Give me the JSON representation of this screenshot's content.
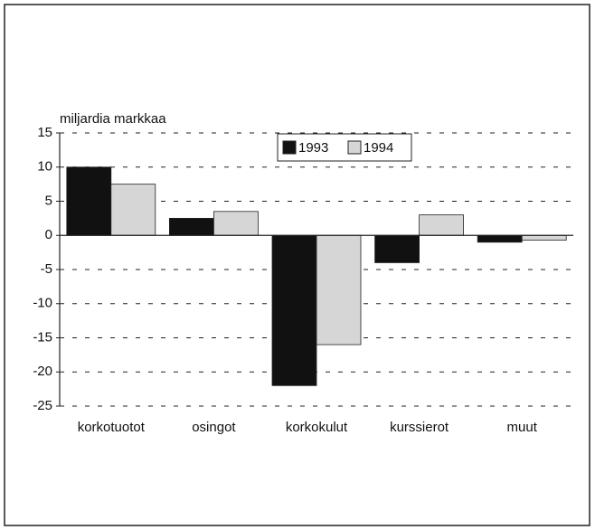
{
  "chart_data": {
    "type": "bar",
    "y_label": "miljardia markkaa",
    "categories": [
      "korkotuotot",
      "osingot",
      "korkokulut",
      "kurssierot",
      "muut"
    ],
    "series": [
      {
        "name": "1993",
        "color": "#111111",
        "values": [
          10,
          2.5,
          -22,
          -4,
          -1
        ]
      },
      {
        "name": "1994",
        "color": "#d6d6d6",
        "values": [
          7.5,
          3.5,
          -16,
          3,
          -0.7
        ]
      }
    ],
    "ylim": [
      -25,
      15
    ],
    "yticks": [
      -25,
      -20,
      -15,
      -10,
      -5,
      0,
      5,
      10,
      15
    ],
    "grid": true,
    "legend": "top"
  }
}
